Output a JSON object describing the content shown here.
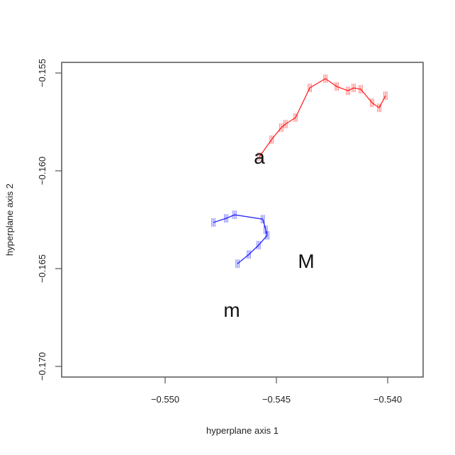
{
  "chart_data": {
    "type": "line",
    "title": "",
    "xlabel": "hyperplane axis 1",
    "ylabel": "hyperplane axis 2",
    "xlim": [
      -0.5545,
      -0.5384
    ],
    "ylim": [
      -0.1705,
      -0.1545
    ],
    "grid": false,
    "legend": null,
    "x_ticks": [
      -0.55,
      -0.545,
      -0.54
    ],
    "x_tick_labels": [
      "−0.550",
      "−0.545",
      "−0.540"
    ],
    "y_ticks": [
      -0.155,
      -0.16,
      -0.165,
      -0.17
    ],
    "y_tick_labels": [
      "−0.155",
      "−0.160",
      "−0.165",
      "−0.170"
    ],
    "series": [
      {
        "name": "a",
        "color": "#ff0000",
        "marker": "vertical tick",
        "x": [
          -0.54576,
          -0.54522,
          -0.54478,
          -0.54459,
          -0.54414,
          -0.5435,
          -0.5428,
          -0.54229,
          -0.54178,
          -0.54153,
          -0.54121,
          -0.5407,
          -0.54038,
          -0.5401
        ],
        "y": [
          -0.15928,
          -0.15841,
          -0.15779,
          -0.15761,
          -0.15728,
          -0.15576,
          -0.15529,
          -0.15569,
          -0.15591,
          -0.15576,
          -0.15583,
          -0.15652,
          -0.15678,
          -0.15616
        ]
      },
      {
        "name": "m",
        "color": "#0000ff",
        "marker": "vertical tick",
        "x": [
          -0.54783,
          -0.54726,
          -0.54688,
          -0.54561,
          -0.54548,
          -0.54541,
          -0.5458,
          -0.54624,
          -0.54675
        ],
        "y": [
          -0.16264,
          -0.16243,
          -0.16225,
          -0.16247,
          -0.16301,
          -0.1633,
          -0.1638,
          -0.16428,
          -0.16475
        ]
      }
    ],
    "annotations": [
      {
        "text": "a",
        "x": -0.5459,
        "y": -0.1593
      },
      {
        "text": "M",
        "x": -0.5437,
        "y": -0.1645
      },
      {
        "text": "m",
        "x": -0.5472,
        "y": -0.1672
      }
    ]
  },
  "labels": {
    "xlabel": "hyperplane axis 1",
    "ylabel": "hyperplane axis 2",
    "ann_a": "a",
    "ann_M": "M",
    "ann_m": "m",
    "xt0": "−0.550",
    "xt1": "−0.545",
    "xt2": "−0.540",
    "yt0": "−0.155",
    "yt1": "−0.160",
    "yt2": "−0.165",
    "yt3": "−0.170"
  }
}
